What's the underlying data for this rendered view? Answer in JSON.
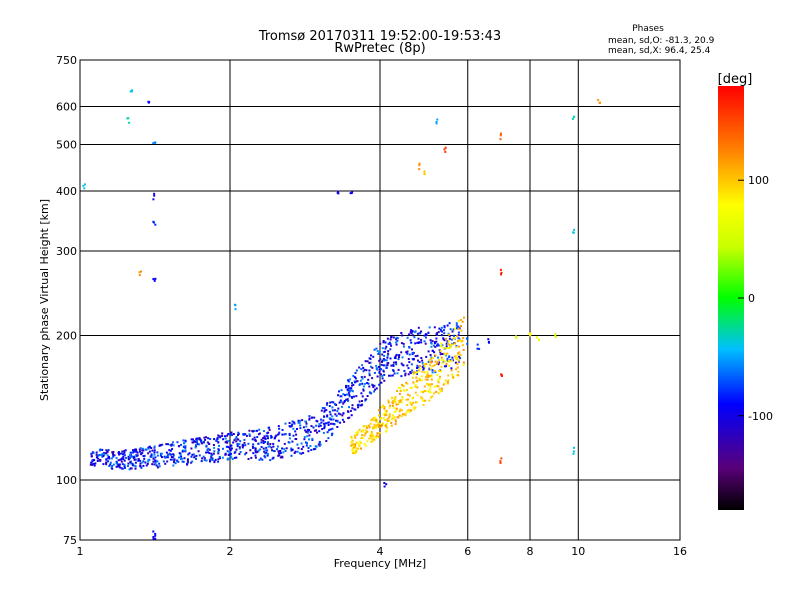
{
  "chart_data": {
    "type": "scatter",
    "title": "Tromsø 20170311 19:52:00-19:53:43",
    "subtitle": "RwPretec (8p)",
    "xlabel": "Frequency [MHz]",
    "ylabel": "Stationary phase Virtual Height [km]",
    "xscale": "log",
    "yscale": "log",
    "xlim": [
      1,
      16
    ],
    "ylim": [
      75,
      750
    ],
    "xticks": [
      1,
      2,
      4,
      6,
      8,
      10,
      16
    ],
    "yticks": [
      75,
      100,
      200,
      300,
      400,
      500,
      600,
      750
    ],
    "grid": true,
    "info": {
      "title": "Phases",
      "line1": "mean, sd,O: -81.3, 20.9",
      "line2": "mean, sd,X: 96.4, 25.4"
    },
    "colorbar": {
      "label": "[deg]",
      "range": [
        -180,
        180
      ],
      "ticks": [
        100,
        0,
        -100
      ],
      "tick_labels": [
        "100",
        "0",
        "-100"
      ]
    },
    "series_description": "O-mode echoes (blue, ~-90 deg) trace from ~110 km near 1 MHz rising to ~200 km near 6 MHz; X-mode echoes (yellow/orange, ~+96 deg) offset to higher frequencies",
    "trace_o": {
      "x": [
        1.05,
        1.2,
        1.4,
        1.6,
        1.8,
        2.0,
        2.2,
        2.5,
        2.8,
        3.0,
        3.2,
        3.4,
        3.6,
        3.8,
        4.0,
        4.3,
        4.6,
        5.0,
        5.4,
        5.8
      ],
      "y": [
        112,
        110,
        112,
        114,
        116,
        118,
        118,
        120,
        124,
        128,
        135,
        145,
        155,
        165,
        175,
        182,
        186,
        188,
        190,
        195
      ],
      "phase": -90
    },
    "trace_x": {
      "x": [
        3.5,
        3.8,
        4.0,
        4.3,
        4.6,
        5.0,
        5.3,
        5.6,
        5.9
      ],
      "y": [
        118,
        125,
        132,
        142,
        152,
        162,
        172,
        185,
        195
      ],
      "phase": 96
    },
    "sporadic": [
      {
        "x": 1.27,
        "y": 640,
        "phase": -40
      },
      {
        "x": 1.37,
        "y": 615,
        "phase": -90
      },
      {
        "x": 1.25,
        "y": 560,
        "phase": -30
      },
      {
        "x": 1.41,
        "y": 500,
        "phase": -60
      },
      {
        "x": 1.41,
        "y": 390,
        "phase": -100
      },
      {
        "x": 1.41,
        "y": 340,
        "phase": -80
      },
      {
        "x": 1.32,
        "y": 270,
        "phase": 120
      },
      {
        "x": 1.41,
        "y": 260,
        "phase": -90
      },
      {
        "x": 1.02,
        "y": 410,
        "phase": -40
      },
      {
        "x": 2.05,
        "y": 230,
        "phase": -50
      },
      {
        "x": 3.3,
        "y": 400,
        "phase": -100
      },
      {
        "x": 3.5,
        "y": 395,
        "phase": -90
      },
      {
        "x": 4.8,
        "y": 450,
        "phase": 120
      },
      {
        "x": 4.9,
        "y": 440,
        "phase": 100
      },
      {
        "x": 5.2,
        "y": 560,
        "phase": -50
      },
      {
        "x": 5.4,
        "y": 490,
        "phase": 160
      },
      {
        "x": 7.0,
        "y": 520,
        "phase": 140
      },
      {
        "x": 9.8,
        "y": 570,
        "phase": -30
      },
      {
        "x": 11.0,
        "y": 615,
        "phase": 120
      },
      {
        "x": 9.8,
        "y": 330,
        "phase": -40
      },
      {
        "x": 7.0,
        "y": 270,
        "phase": 170
      },
      {
        "x": 7.5,
        "y": 200,
        "phase": 60
      },
      {
        "x": 8.0,
        "y": 200,
        "phase": 80
      },
      {
        "x": 8.3,
        "y": 198,
        "phase": 70
      },
      {
        "x": 9.0,
        "y": 200,
        "phase": 50
      },
      {
        "x": 7.0,
        "y": 165,
        "phase": 170
      },
      {
        "x": 7.0,
        "y": 110,
        "phase": 150
      },
      {
        "x": 9.8,
        "y": 115,
        "phase": -40
      },
      {
        "x": 4.1,
        "y": 98,
        "phase": -100
      },
      {
        "x": 1.41,
        "y": 77,
        "phase": -90
      },
      {
        "x": 1.41,
        "y": 75,
        "phase": -100
      },
      {
        "x": 6.0,
        "y": 195,
        "phase": -70
      },
      {
        "x": 6.3,
        "y": 190,
        "phase": -80
      },
      {
        "x": 6.6,
        "y": 195,
        "phase": -90
      }
    ]
  }
}
